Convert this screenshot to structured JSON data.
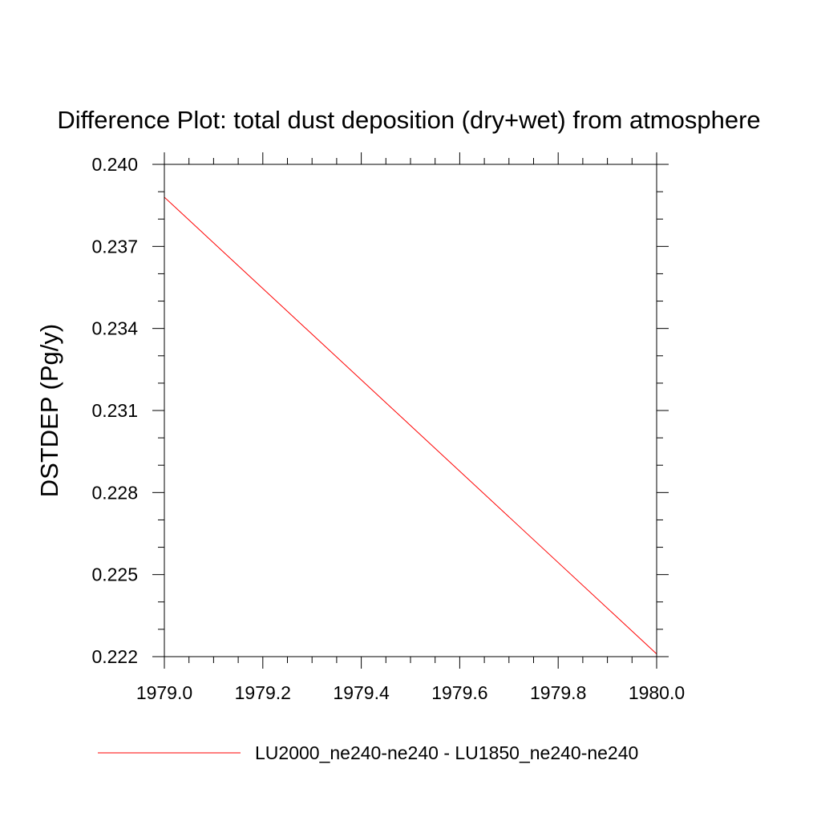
{
  "chart_data": {
    "type": "line",
    "title": "Difference Plot: total dust deposition (dry+wet) from atmosphere",
    "xlabel": "",
    "ylabel": "DSTDEP  (Pg/y)",
    "xlim": [
      1979.0,
      1980.0
    ],
    "ylim": [
      0.222,
      0.24
    ],
    "x_ticks": [
      "1979.0",
      "1979.2",
      "1979.4",
      "1979.6",
      "1979.8",
      "1980.0"
    ],
    "y_ticks": [
      "0.222",
      "0.225",
      "0.228",
      "0.231",
      "0.234",
      "0.237",
      "0.240"
    ],
    "grid": false,
    "legend_position": "bottom",
    "series": [
      {
        "name": "LU2000_ne240-ne240 - LU1850_ne240-ne240",
        "color": "#ff0000",
        "x": [
          1979.0,
          1980.0
        ],
        "y": [
          0.2388,
          0.2221
        ]
      }
    ]
  }
}
